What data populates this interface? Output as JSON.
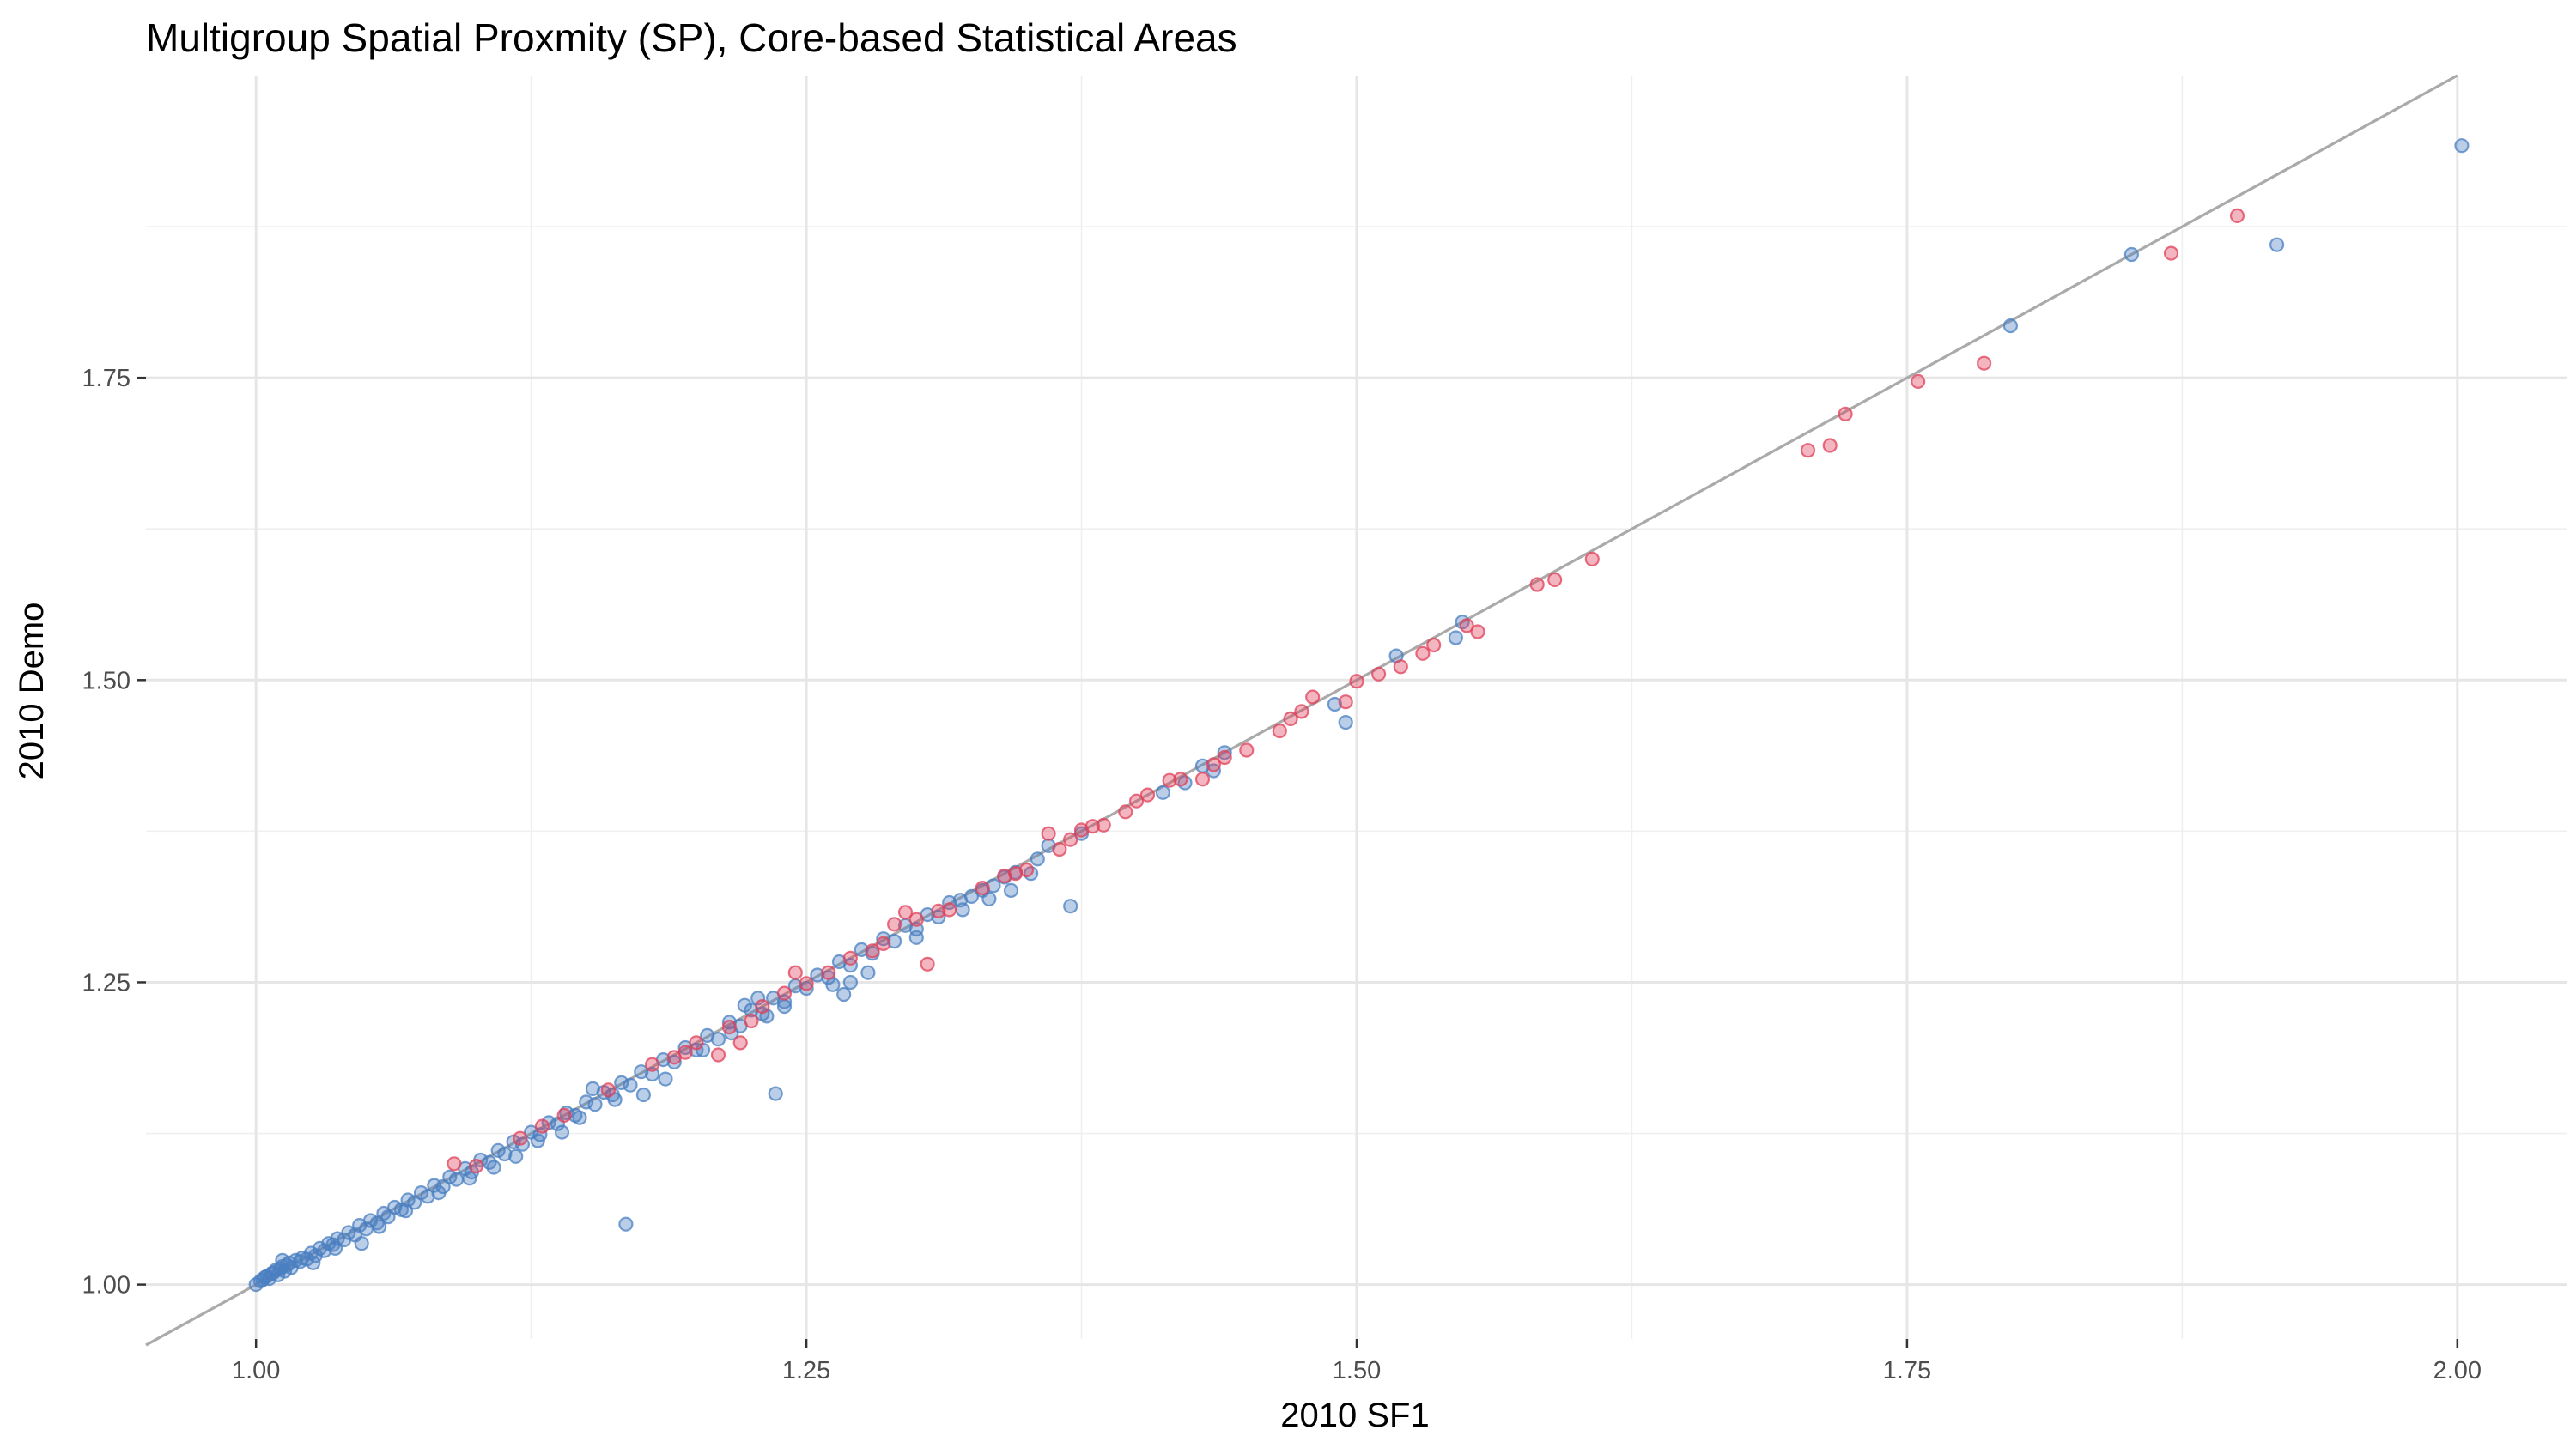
{
  "chart_data": {
    "type": "scatter",
    "title": "Multigroup Spatial Proxmity (SP), Core-based Statistical Areas",
    "xlabel": "2010 SF1",
    "ylabel": "2010 Demo",
    "xlim": [
      0.95,
      2.05
    ],
    "ylim": [
      0.955,
      2.0
    ],
    "x_ticks": [
      1.0,
      1.25,
      1.5,
      1.75,
      2.0
    ],
    "x_tick_labels": [
      "1.00",
      "1.25",
      "1.50",
      "1.75",
      "2.00"
    ],
    "y_ticks": [
      1.0,
      1.25,
      1.5,
      1.75
    ],
    "y_tick_labels": [
      "1.00",
      "1.25",
      "1.50",
      "1.75"
    ],
    "x_minor": [
      1.125,
      1.375,
      1.625,
      1.875
    ],
    "y_minor": [
      1.125,
      1.375,
      1.625,
      1.875
    ],
    "grid": true,
    "legend": "none",
    "reference_line": {
      "slope": 1,
      "intercept": 0,
      "color": "#aaaaaa"
    },
    "series": [
      {
        "color": "#4a7fc1",
        "points": [
          [
            1.0,
            1.0
          ],
          [
            1.002,
            1.003
          ],
          [
            1.003,
            1.004
          ],
          [
            1.004,
            1.006
          ],
          [
            1.005,
            1.007
          ],
          [
            1.006,
            1.005
          ],
          [
            1.007,
            1.009
          ],
          [
            1.008,
            1.01
          ],
          [
            1.009,
            1.012
          ],
          [
            1.01,
            1.008
          ],
          [
            1.011,
            1.013
          ],
          [
            1.012,
            1.015
          ],
          [
            1.013,
            1.011
          ],
          [
            1.014,
            1.016
          ],
          [
            1.015,
            1.018
          ],
          [
            1.016,
            1.014
          ],
          [
            1.018,
            1.02
          ],
          [
            1.02,
            1.019
          ],
          [
            1.021,
            1.022
          ],
          [
            1.023,
            1.021
          ],
          [
            1.025,
            1.026
          ],
          [
            1.027,
            1.024
          ],
          [
            1.029,
            1.03
          ],
          [
            1.031,
            1.028
          ],
          [
            1.033,
            1.034
          ],
          [
            1.035,
            1.033
          ],
          [
            1.037,
            1.038
          ],
          [
            1.04,
            1.037
          ],
          [
            1.042,
            1.043
          ],
          [
            1.045,
            1.041
          ],
          [
            1.047,
            1.049
          ],
          [
            1.05,
            1.046
          ],
          [
            1.052,
            1.053
          ],
          [
            1.055,
            1.051
          ],
          [
            1.058,
            1.059
          ],
          [
            1.06,
            1.056
          ],
          [
            1.063,
            1.064
          ],
          [
            1.066,
            1.062
          ],
          [
            1.069,
            1.07
          ],
          [
            1.072,
            1.068
          ],
          [
            1.075,
            1.076
          ],
          [
            1.078,
            1.073
          ],
          [
            1.081,
            1.082
          ],
          [
            1.085,
            1.081
          ],
          [
            1.088,
            1.089
          ],
          [
            1.091,
            1.087
          ],
          [
            1.095,
            1.096
          ],
          [
            1.098,
            1.093
          ],
          [
            1.102,
            1.103
          ],
          [
            1.106,
            1.101
          ],
          [
            1.11,
            1.111
          ],
          [
            1.113,
            1.108
          ],
          [
            1.117,
            1.118
          ],
          [
            1.121,
            1.116
          ],
          [
            1.125,
            1.126
          ],
          [
            1.129,
            1.124
          ],
          [
            1.133,
            1.134
          ],
          [
            1.137,
            1.133
          ],
          [
            1.141,
            1.142
          ],
          [
            1.145,
            1.14
          ],
          [
            1.15,
            1.151
          ],
          [
            1.154,
            1.149
          ],
          [
            1.158,
            1.159
          ],
          [
            1.162,
            1.157
          ],
          [
            1.166,
            1.167
          ],
          [
            1.17,
            1.165
          ],
          [
            1.175,
            1.176
          ],
          [
            1.18,
            1.174
          ],
          [
            1.185,
            1.186
          ],
          [
            1.19,
            1.184
          ],
          [
            1.195,
            1.196
          ],
          [
            1.2,
            1.194
          ],
          [
            1.205,
            1.206
          ],
          [
            1.21,
            1.203
          ],
          [
            1.215,
            1.217
          ],
          [
            1.22,
            1.214
          ],
          [
            1.225,
            1.227
          ],
          [
            1.23,
            1.224
          ],
          [
            1.235,
            1.237
          ],
          [
            1.24,
            1.234
          ],
          [
            1.245,
            1.247
          ],
          [
            1.25,
            1.245
          ],
          [
            1.255,
            1.256
          ],
          [
            1.26,
            1.254
          ],
          [
            1.265,
            1.267
          ],
          [
            1.27,
            1.264
          ],
          [
            1.275,
            1.277
          ],
          [
            1.28,
            1.274
          ],
          [
            1.285,
            1.286
          ],
          [
            1.29,
            1.284
          ],
          [
            1.295,
            1.297
          ],
          [
            1.3,
            1.294
          ],
          [
            1.305,
            1.306
          ],
          [
            1.31,
            1.304
          ],
          [
            1.315,
            1.316
          ],
          [
            1.32,
            1.318
          ],
          [
            1.325,
            1.321
          ],
          [
            1.33,
            1.326
          ],
          [
            1.335,
            1.33
          ],
          [
            1.34,
            1.337
          ],
          [
            1.345,
            1.341
          ],
          [
            1.355,
            1.352
          ],
          [
            1.36,
            1.363
          ],
          [
            1.375,
            1.373
          ],
          [
            1.43,
            1.429
          ],
          [
            1.44,
            1.44
          ],
          [
            1.548,
            1.548
          ],
          [
            1.168,
            1.05
          ],
          [
            1.236,
            1.158
          ],
          [
            1.37,
            1.313
          ],
          [
            1.495,
            1.465
          ],
          [
            1.49,
            1.48
          ],
          [
            1.518,
            1.52
          ],
          [
            1.545,
            1.535
          ],
          [
            1.797,
            1.793
          ],
          [
            1.852,
            1.852
          ],
          [
            1.918,
            1.86
          ],
          [
            2.002,
            1.942
          ],
          [
            1.012,
            1.02
          ],
          [
            1.026,
            1.018
          ],
          [
            1.036,
            1.03
          ],
          [
            1.048,
            1.034
          ],
          [
            1.056,
            1.048
          ],
          [
            1.068,
            1.061
          ],
          [
            1.083,
            1.076
          ],
          [
            1.097,
            1.088
          ],
          [
            1.108,
            1.097
          ],
          [
            1.118,
            1.106
          ],
          [
            1.128,
            1.119
          ],
          [
            1.139,
            1.126
          ],
          [
            1.147,
            1.138
          ],
          [
            1.153,
            1.162
          ],
          [
            1.163,
            1.153
          ],
          [
            1.176,
            1.157
          ],
          [
            1.186,
            1.17
          ],
          [
            1.203,
            1.194
          ],
          [
            1.216,
            1.208
          ],
          [
            1.222,
            1.231
          ],
          [
            1.228,
            1.237
          ],
          [
            1.232,
            1.222
          ],
          [
            1.24,
            1.23
          ],
          [
            1.262,
            1.248
          ],
          [
            1.267,
            1.24
          ],
          [
            1.27,
            1.25
          ],
          [
            1.278,
            1.258
          ],
          [
            1.3,
            1.287
          ],
          [
            1.321,
            1.31
          ],
          [
            1.333,
            1.319
          ],
          [
            1.343,
            1.326
          ],
          [
            1.352,
            1.34
          ],
          [
            1.412,
            1.407
          ],
          [
            1.422,
            1.415
          ],
          [
            1.435,
            1.425
          ]
        ]
      },
      {
        "color": "#e0405a",
        "points": [
          [
            1.09,
            1.1
          ],
          [
            1.1,
            1.098
          ],
          [
            1.12,
            1.121
          ],
          [
            1.13,
            1.131
          ],
          [
            1.14,
            1.14
          ],
          [
            1.16,
            1.161
          ],
          [
            1.18,
            1.182
          ],
          [
            1.19,
            1.188
          ],
          [
            1.2,
            1.2
          ],
          [
            1.21,
            1.19
          ],
          [
            1.215,
            1.213
          ],
          [
            1.225,
            1.218
          ],
          [
            1.23,
            1.23
          ],
          [
            1.24,
            1.241
          ],
          [
            1.245,
            1.258
          ],
          [
            1.25,
            1.249
          ],
          [
            1.26,
            1.258
          ],
          [
            1.27,
            1.27
          ],
          [
            1.28,
            1.276
          ],
          [
            1.285,
            1.282
          ],
          [
            1.29,
            1.298
          ],
          [
            1.295,
            1.308
          ],
          [
            1.3,
            1.302
          ],
          [
            1.305,
            1.265
          ],
          [
            1.31,
            1.309
          ],
          [
            1.33,
            1.328
          ],
          [
            1.34,
            1.338
          ],
          [
            1.35,
            1.343
          ],
          [
            1.36,
            1.373
          ],
          [
            1.365,
            1.36
          ],
          [
            1.37,
            1.368
          ],
          [
            1.375,
            1.376
          ],
          [
            1.38,
            1.379
          ],
          [
            1.385,
            1.38
          ],
          [
            1.395,
            1.391
          ],
          [
            1.4,
            1.4
          ],
          [
            1.405,
            1.405
          ],
          [
            1.415,
            1.417
          ],
          [
            1.42,
            1.418
          ],
          [
            1.43,
            1.418
          ],
          [
            1.435,
            1.43
          ],
          [
            1.44,
            1.436
          ],
          [
            1.45,
            1.442
          ],
          [
            1.465,
            1.458
          ],
          [
            1.47,
            1.468
          ],
          [
            1.475,
            1.474
          ],
          [
            1.48,
            1.486
          ],
          [
            1.495,
            1.482
          ],
          [
            1.5,
            1.499
          ],
          [
            1.51,
            1.505
          ],
          [
            1.52,
            1.511
          ],
          [
            1.53,
            1.522
          ],
          [
            1.535,
            1.529
          ],
          [
            1.55,
            1.545
          ],
          [
            1.555,
            1.54
          ],
          [
            1.582,
            1.579
          ],
          [
            1.59,
            1.583
          ],
          [
            1.607,
            1.6
          ],
          [
            1.705,
            1.69
          ],
          [
            1.715,
            1.694
          ],
          [
            1.722,
            1.72
          ],
          [
            1.755,
            1.747
          ],
          [
            1.785,
            1.762
          ],
          [
            1.87,
            1.853
          ],
          [
            1.9,
            1.884
          ],
          [
            1.22,
            1.2
          ],
          [
            1.195,
            1.192
          ],
          [
            1.315,
            1.31
          ],
          [
            1.345,
            1.34
          ]
        ]
      }
    ]
  }
}
